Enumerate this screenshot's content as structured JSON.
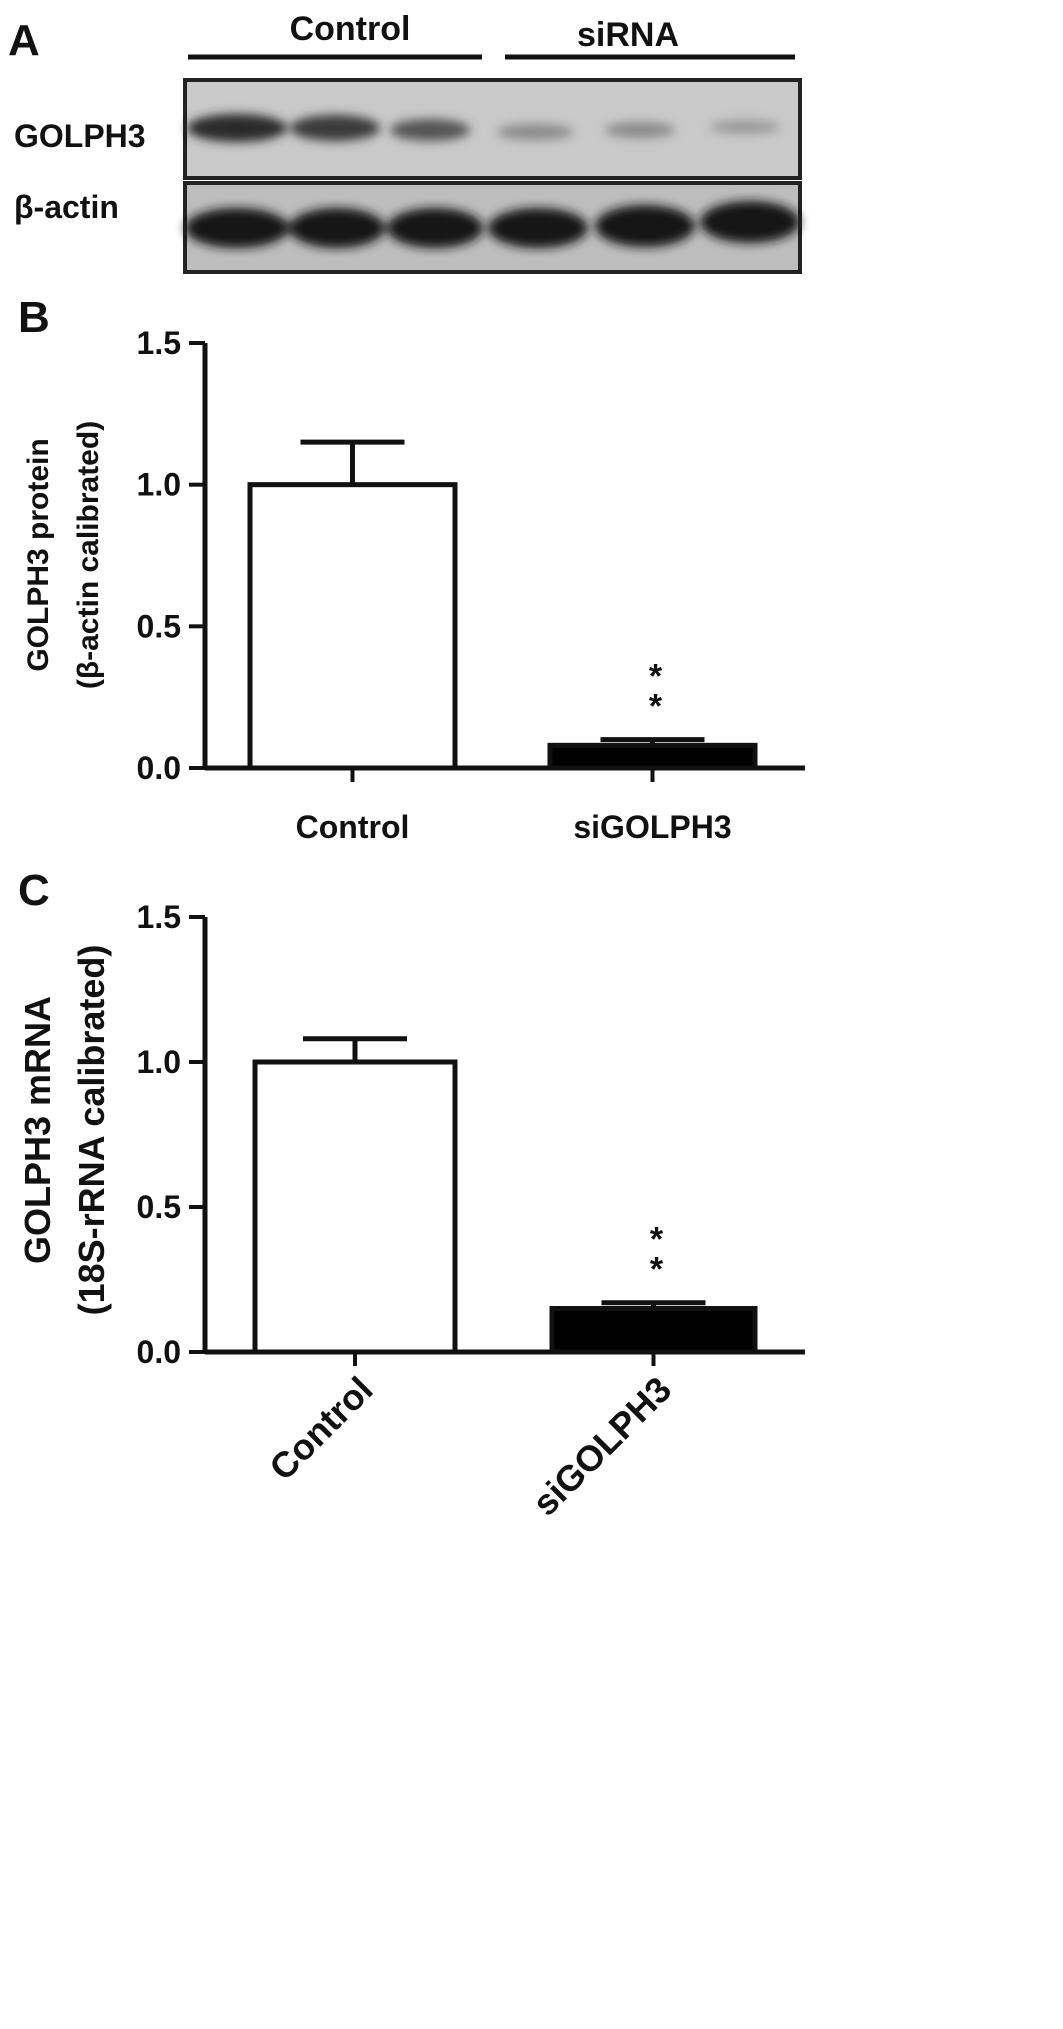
{
  "panel_a": {
    "panel_label": "A",
    "groups": [
      "Control",
      "siRNA"
    ],
    "rows": [
      "GOLPH3",
      "β-actin"
    ]
  },
  "chart_data": [
    {
      "type": "bar",
      "panel_label": "B",
      "y_label": [
        "GOLPH3  protein",
        "(β-actin calibrated)"
      ],
      "categories": [
        "Control",
        "siGOLPH3"
      ],
      "values": [
        1.0,
        0.08
      ],
      "errors": [
        0.15,
        0.02
      ],
      "colors": [
        "#ffffff",
        "#000000"
      ],
      "annotation": "**",
      "ylim": [
        0,
        1.5
      ],
      "yticks": [
        {
          "value": 0,
          "label": "0.0"
        },
        {
          "value": 0.5,
          "label": "0.5"
        },
        {
          "value": 1,
          "label": "1.0"
        },
        {
          "value": 1.5,
          "label": "1.5"
        }
      ]
    },
    {
      "type": "bar",
      "panel_label": "C",
      "y_label": [
        "GOLPH3 mRNA",
        "(18S-rRNA calibrated)"
      ],
      "categories": [
        "Control",
        "siGOLPH3"
      ],
      "values": [
        1.0,
        0.15
      ],
      "errors": [
        0.08,
        0.02
      ],
      "colors": [
        "#ffffff",
        "#000000"
      ],
      "annotation": "**",
      "ylim": [
        0,
        1.5
      ],
      "yticks": [
        {
          "value": 0,
          "label": "0.0"
        },
        {
          "value": 0.5,
          "label": "0.5"
        },
        {
          "value": 1,
          "label": "1.0"
        },
        {
          "value": 1.5,
          "label": "1.5"
        }
      ]
    }
  ]
}
